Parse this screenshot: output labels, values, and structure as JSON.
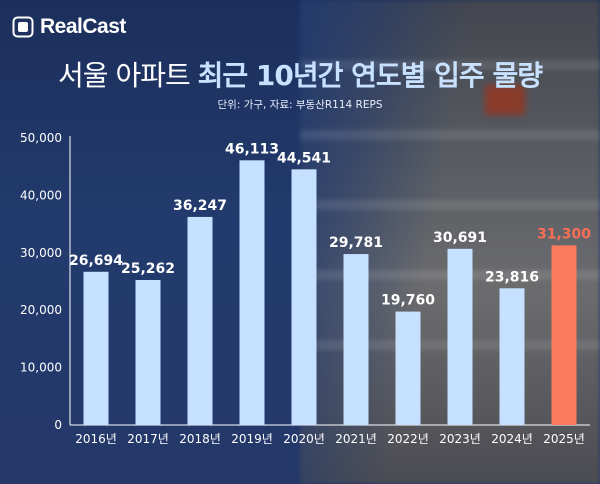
{
  "logo": {
    "brand": "RealCast"
  },
  "title": {
    "part1": "서울 아파트",
    "part2": "최근 10년간 연도별 입주 물량"
  },
  "source": "단위: 가구, 자료: 부동산R114 REPS",
  "colors": {
    "bar": "#c5e1ff",
    "highlight": "#fa7a5e",
    "highlight_label": "#fa6e55",
    "axis": "#ffffff"
  },
  "chart_data": {
    "type": "bar",
    "categories": [
      "2016년",
      "2017년",
      "2018년",
      "2019년",
      "2020년",
      "2021년",
      "2022년",
      "2023년",
      "2024년",
      "2025년"
    ],
    "values": [
      26694,
      25262,
      36247,
      46113,
      44541,
      29781,
      19760,
      30691,
      23816,
      31300
    ],
    "value_labels": [
      "26,694",
      "25,262",
      "36,247",
      "46,113",
      "44,541",
      "29,781",
      "19,760",
      "30,691",
      "23,816",
      "31,300"
    ],
    "highlight_index": 9,
    "ylim": [
      0,
      50000
    ],
    "yticks": [
      0,
      10000,
      20000,
      30000,
      40000,
      50000
    ],
    "ytick_labels": [
      "0",
      "10,000",
      "20,000",
      "30,000",
      "40,000",
      "50,000"
    ],
    "grid": false,
    "title": "서울 아파트 최근 10년간 연도별 입주 물량",
    "xlabel": "",
    "ylabel": ""
  }
}
